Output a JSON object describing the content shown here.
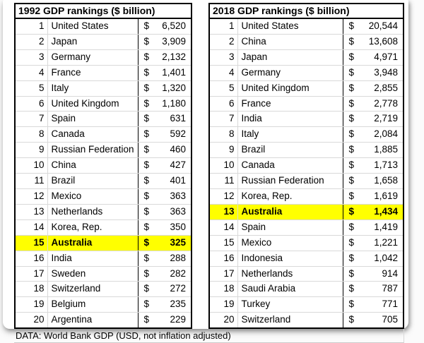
{
  "footer": {
    "text": "DATA: World Bank GDP (USD, not inflation adjusted)"
  },
  "colors": {
    "highlight_row": "#ffff00",
    "grid_line": "#d9d9d9",
    "table_border": "#000000",
    "background": "#ffffff"
  },
  "chart_data": [
    {
      "type": "table",
      "title": "1992 GDP rankings ($ billion)",
      "columns": [
        "rank",
        "country",
        "gdp_billion_usd"
      ],
      "currency_symbol": "$",
      "highlighted_country": "Australia",
      "rows": [
        {
          "rank": 1,
          "country": "United States",
          "gdp": 6520,
          "display": "6,520",
          "highlight": false
        },
        {
          "rank": 2,
          "country": "Japan",
          "gdp": 3909,
          "display": "3,909",
          "highlight": false
        },
        {
          "rank": 3,
          "country": "Germany",
          "gdp": 2132,
          "display": "2,132",
          "highlight": false
        },
        {
          "rank": 4,
          "country": "France",
          "gdp": 1401,
          "display": "1,401",
          "highlight": false
        },
        {
          "rank": 5,
          "country": "Italy",
          "gdp": 1320,
          "display": "1,320",
          "highlight": false
        },
        {
          "rank": 6,
          "country": "United Kingdom",
          "gdp": 1180,
          "display": "1,180",
          "highlight": false
        },
        {
          "rank": 7,
          "country": "Spain",
          "gdp": 631,
          "display": "631",
          "highlight": false
        },
        {
          "rank": 8,
          "country": "Canada",
          "gdp": 592,
          "display": "592",
          "highlight": false
        },
        {
          "rank": 9,
          "country": "Russian Federation",
          "gdp": 460,
          "display": "460",
          "highlight": false
        },
        {
          "rank": 10,
          "country": "China",
          "gdp": 427,
          "display": "427",
          "highlight": false
        },
        {
          "rank": 11,
          "country": "Brazil",
          "gdp": 401,
          "display": "401",
          "highlight": false
        },
        {
          "rank": 12,
          "country": "Mexico",
          "gdp": 363,
          "display": "363",
          "highlight": false
        },
        {
          "rank": 13,
          "country": "Netherlands",
          "gdp": 363,
          "display": "363",
          "highlight": false
        },
        {
          "rank": 14,
          "country": "Korea, Rep.",
          "gdp": 350,
          "display": "350",
          "highlight": false
        },
        {
          "rank": 15,
          "country": "Australia",
          "gdp": 325,
          "display": "325",
          "highlight": true
        },
        {
          "rank": 16,
          "country": "India",
          "gdp": 288,
          "display": "288",
          "highlight": false
        },
        {
          "rank": 17,
          "country": "Sweden",
          "gdp": 282,
          "display": "282",
          "highlight": false
        },
        {
          "rank": 18,
          "country": "Switzerland",
          "gdp": 272,
          "display": "272",
          "highlight": false
        },
        {
          "rank": 19,
          "country": "Belgium",
          "gdp": 235,
          "display": "235",
          "highlight": false
        },
        {
          "rank": 20,
          "country": "Argentina",
          "gdp": 229,
          "display": "229",
          "highlight": false
        }
      ]
    },
    {
      "type": "table",
      "title": "2018 GDP rankings ($ billion)",
      "columns": [
        "rank",
        "country",
        "gdp_billion_usd"
      ],
      "currency_symbol": "$",
      "highlighted_country": "Australia",
      "rows": [
        {
          "rank": 1,
          "country": "United States",
          "gdp": 20544,
          "display": "20,544",
          "highlight": false
        },
        {
          "rank": 2,
          "country": "China",
          "gdp": 13608,
          "display": "13,608",
          "highlight": false
        },
        {
          "rank": 3,
          "country": "Japan",
          "gdp": 4971,
          "display": "4,971",
          "highlight": false
        },
        {
          "rank": 4,
          "country": "Germany",
          "gdp": 3948,
          "display": "3,948",
          "highlight": false
        },
        {
          "rank": 5,
          "country": "United Kingdom",
          "gdp": 2855,
          "display": "2,855",
          "highlight": false
        },
        {
          "rank": 6,
          "country": "France",
          "gdp": 2778,
          "display": "2,778",
          "highlight": false
        },
        {
          "rank": 7,
          "country": "India",
          "gdp": 2719,
          "display": "2,719",
          "highlight": false
        },
        {
          "rank": 8,
          "country": "Italy",
          "gdp": 2084,
          "display": "2,084",
          "highlight": false
        },
        {
          "rank": 9,
          "country": "Brazil",
          "gdp": 1885,
          "display": "1,885",
          "highlight": false
        },
        {
          "rank": 10,
          "country": "Canada",
          "gdp": 1713,
          "display": "1,713",
          "highlight": false
        },
        {
          "rank": 11,
          "country": "Russian Federation",
          "gdp": 1658,
          "display": "1,658",
          "highlight": false
        },
        {
          "rank": 12,
          "country": "Korea, Rep.",
          "gdp": 1619,
          "display": "1,619",
          "highlight": false
        },
        {
          "rank": 13,
          "country": "Australia",
          "gdp": 1434,
          "display": "1,434",
          "highlight": true
        },
        {
          "rank": 14,
          "country": "Spain",
          "gdp": 1419,
          "display": "1,419",
          "highlight": false
        },
        {
          "rank": 15,
          "country": "Mexico",
          "gdp": 1221,
          "display": "1,221",
          "highlight": false
        },
        {
          "rank": 16,
          "country": "Indonesia",
          "gdp": 1042,
          "display": "1,042",
          "highlight": false
        },
        {
          "rank": 17,
          "country": "Netherlands",
          "gdp": 914,
          "display": "914",
          "highlight": false
        },
        {
          "rank": 18,
          "country": "Saudi Arabia",
          "gdp": 787,
          "display": "787",
          "highlight": false
        },
        {
          "rank": 19,
          "country": "Turkey",
          "gdp": 771,
          "display": "771",
          "highlight": false
        },
        {
          "rank": 20,
          "country": "Switzerland",
          "gdp": 705,
          "display": "705",
          "highlight": false
        }
      ]
    }
  ]
}
